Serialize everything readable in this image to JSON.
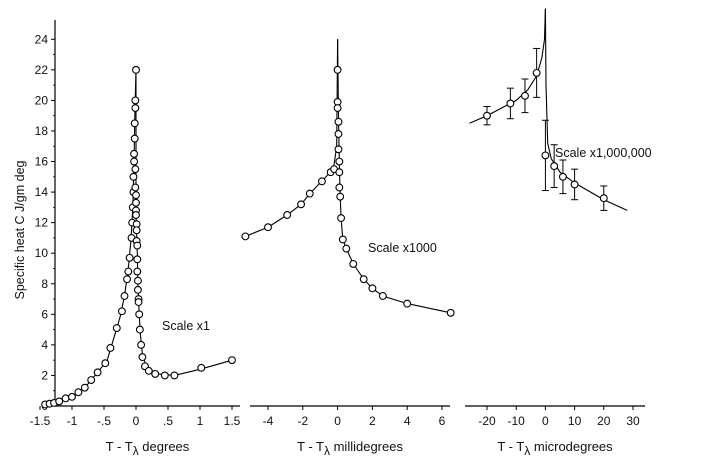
{
  "chart_data": {
    "type": "scatter",
    "ylabel": "Specific heat C  J/gm deg",
    "ylim": [
      0,
      25
    ],
    "yticks": [
      0,
      2,
      4,
      6,
      8,
      10,
      12,
      14,
      16,
      18,
      20,
      22,
      24
    ],
    "panels": [
      {
        "id": "degrees",
        "annotation": "Scale x1",
        "xlabel_prefix": "T - T",
        "xlabel_subscript": "λ",
        "xlabel_suffix": "degrees",
        "xlim": [
          -1.55,
          1.6
        ],
        "xticks": [
          -1.5,
          -1,
          -0.5,
          0,
          0.5,
          1,
          1.5
        ],
        "xtick_labels": [
          "-1.5",
          "-1",
          "-.5",
          "0",
          ".5",
          "1",
          "1.5"
        ],
        "points": [
          [
            -1.42,
            0.1
          ],
          [
            -1.35,
            0.15
          ],
          [
            -1.28,
            0.2
          ],
          [
            -1.2,
            0.3
          ],
          [
            -1.1,
            0.5
          ],
          [
            -1.0,
            0.6
          ],
          [
            -0.9,
            0.9
          ],
          [
            -0.8,
            1.2
          ],
          [
            -0.7,
            1.7
          ],
          [
            -0.6,
            2.2
          ],
          [
            -0.48,
            2.8
          ],
          [
            -0.4,
            3.8
          ],
          [
            -0.3,
            5.1
          ],
          [
            -0.22,
            6.2
          ],
          [
            -0.18,
            7.2
          ],
          [
            -0.14,
            8.3
          ],
          [
            -0.12,
            8.8
          ],
          [
            -0.1,
            9.7
          ],
          [
            -0.07,
            11.0
          ],
          [
            -0.06,
            12.0
          ],
          [
            -0.05,
            13.0
          ],
          [
            -0.04,
            14.0
          ],
          [
            -0.04,
            15.0
          ],
          [
            -0.03,
            16.0
          ],
          [
            -0.03,
            16.5
          ],
          [
            -0.02,
            17.5
          ],
          [
            -0.02,
            18.5
          ],
          [
            -0.01,
            19.5
          ],
          [
            -0.01,
            20.0
          ],
          [
            0.0,
            22.0
          ],
          [
            -0.01,
            15.5
          ],
          [
            -0.01,
            14.3
          ],
          [
            0.0,
            13.8
          ],
          [
            0.0,
            13.3
          ],
          [
            0.0,
            12.8
          ],
          [
            0.0,
            12.5
          ],
          [
            0.01,
            11.9
          ],
          [
            0.01,
            11.5
          ],
          [
            0.01,
            10.8
          ],
          [
            0.02,
            10.5
          ],
          [
            0.02,
            9.6
          ],
          [
            0.02,
            8.8
          ],
          [
            0.03,
            8.2
          ],
          [
            0.03,
            7.6
          ],
          [
            0.04,
            7.0
          ],
          [
            0.04,
            6.8
          ],
          [
            0.05,
            6.0
          ],
          [
            0.06,
            5.0
          ],
          [
            0.08,
            4.0
          ],
          [
            0.1,
            3.2
          ],
          [
            0.14,
            2.6
          ],
          [
            0.2,
            2.3
          ],
          [
            0.3,
            2.1
          ],
          [
            0.45,
            2.0
          ],
          [
            0.6,
            2.0
          ],
          [
            1.02,
            2.5
          ],
          [
            1.5,
            3.0
          ]
        ],
        "curves": [
          [
            [
              -1.45,
              0.05
            ],
            [
              -1.2,
              0.3
            ],
            [
              -1.0,
              0.6
            ],
            [
              -0.8,
              1.2
            ],
            [
              -0.6,
              2.2
            ],
            [
              -0.45,
              3.0
            ],
            [
              -0.35,
              4.4
            ],
            [
              -0.25,
              5.8
            ],
            [
              -0.18,
              7.2
            ],
            [
              -0.12,
              9.0
            ],
            [
              -0.08,
              10.8
            ],
            [
              -0.05,
              13.0
            ],
            [
              -0.03,
              16.0
            ],
            [
              -0.02,
              18.5
            ],
            [
              -0.01,
              20.5
            ],
            [
              0.0,
              22.0
            ]
          ],
          [
            [
              0.0,
              22.0
            ],
            [
              0.0,
              15.0
            ],
            [
              0.0,
              12.5
            ],
            [
              0.02,
              10.0
            ],
            [
              0.03,
              8.0
            ],
            [
              0.05,
              6.0
            ],
            [
              0.07,
              4.6
            ],
            [
              0.1,
              3.4
            ],
            [
              0.15,
              2.7
            ],
            [
              0.22,
              2.3
            ],
            [
              0.35,
              2.1
            ],
            [
              0.6,
              2.0
            ],
            [
              1.0,
              2.4
            ],
            [
              1.5,
              3.0
            ]
          ]
        ]
      },
      {
        "id": "millidegrees",
        "annotation": "Scale x1000",
        "xlabel_prefix": "T - T",
        "xlabel_subscript": "λ",
        "xlabel_suffix": "millidegrees",
        "xlim": [
          -5.9,
          7.2
        ],
        "xticks": [
          -4,
          -2,
          0,
          2,
          4,
          6
        ],
        "xtick_labels": [
          "-4",
          "-2",
          "0",
          "2",
          "4",
          "6"
        ],
        "points": [
          [
            -5.3,
            11.1
          ],
          [
            -4.0,
            11.7
          ],
          [
            -2.9,
            12.5
          ],
          [
            -2.1,
            13.2
          ],
          [
            -1.6,
            13.9
          ],
          [
            -0.9,
            14.7
          ],
          [
            -0.4,
            15.3
          ],
          [
            -0.2,
            15.5
          ],
          [
            0.0,
            22.0
          ],
          [
            0.0,
            19.9
          ],
          [
            0.0,
            19.5
          ],
          [
            0.05,
            18.6
          ],
          [
            0.05,
            17.8
          ],
          [
            0.05,
            16.8
          ],
          [
            0.1,
            16.0
          ],
          [
            0.1,
            15.3
          ],
          [
            0.1,
            14.3
          ],
          [
            0.15,
            13.7
          ],
          [
            0.2,
            12.3
          ],
          [
            0.3,
            10.9
          ],
          [
            0.5,
            10.3
          ],
          [
            0.9,
            9.3
          ],
          [
            1.5,
            8.3
          ],
          [
            2.0,
            7.7
          ],
          [
            2.6,
            7.2
          ],
          [
            4.0,
            6.7
          ],
          [
            6.5,
            6.1
          ]
        ],
        "curves": [
          [
            [
              -5.3,
              11.1
            ],
            [
              -4.0,
              11.7
            ],
            [
              -2.9,
              12.5
            ],
            [
              -2.1,
              13.2
            ],
            [
              -1.6,
              13.9
            ],
            [
              -1.0,
              14.6
            ],
            [
              -0.5,
              15.2
            ],
            [
              -0.2,
              15.8
            ],
            [
              -0.05,
              17.0
            ],
            [
              0.0,
              24.0
            ]
          ],
          [
            [
              0.0,
              24.0
            ],
            [
              0.05,
              19.0
            ],
            [
              0.1,
              16.0
            ],
            [
              0.15,
              13.7
            ],
            [
              0.2,
              12.3
            ],
            [
              0.3,
              10.9
            ],
            [
              0.5,
              10.3
            ],
            [
              0.9,
              9.3
            ],
            [
              1.5,
              8.3
            ],
            [
              2.0,
              7.7
            ],
            [
              2.6,
              7.2
            ],
            [
              4.0,
              6.7
            ],
            [
              6.5,
              6.1
            ]
          ]
        ]
      },
      {
        "id": "microdegrees",
        "annotation": "Scale x1,000,000",
        "xlabel_prefix": "T - T",
        "xlabel_subscript": "λ",
        "xlabel_suffix": "microdegrees",
        "xlim": [
          -28,
          31
        ],
        "xticks": [
          -20,
          -10,
          0,
          10,
          20,
          30
        ],
        "xtick_labels": [
          "-20",
          "-10",
          "0",
          "10",
          "20",
          "30"
        ],
        "points": [
          [
            -20,
            19.0
          ],
          [
            -12,
            19.8
          ],
          [
            -7,
            20.3
          ],
          [
            -3,
            21.8
          ],
          [
            0,
            16.4
          ],
          [
            3,
            15.7
          ],
          [
            6,
            15.0
          ],
          [
            10,
            14.5
          ],
          [
            20,
            13.6
          ]
        ],
        "errors": [
          0.6,
          1.0,
          1.1,
          1.6,
          2.3,
          1.4,
          1.1,
          1.0,
          0.8
        ],
        "curves": [
          [
            [
              -26,
              18.5
            ],
            [
              -20,
              19.0
            ],
            [
              -15,
              19.5
            ],
            [
              -10,
              20.0
            ],
            [
              -6,
              20.7
            ],
            [
              -3,
              21.6
            ],
            [
              -1.2,
              22.8
            ],
            [
              -0.3,
              24.0
            ],
            [
              0.0,
              26.0
            ]
          ],
          [
            [
              0.0,
              26.0
            ],
            [
              0.2,
              21.0
            ],
            [
              0.8,
              17.2
            ],
            [
              2,
              16.2
            ],
            [
              5,
              15.3
            ],
            [
              10,
              14.6
            ],
            [
              20,
              13.5
            ],
            [
              28,
              12.8
            ]
          ]
        ]
      }
    ]
  }
}
